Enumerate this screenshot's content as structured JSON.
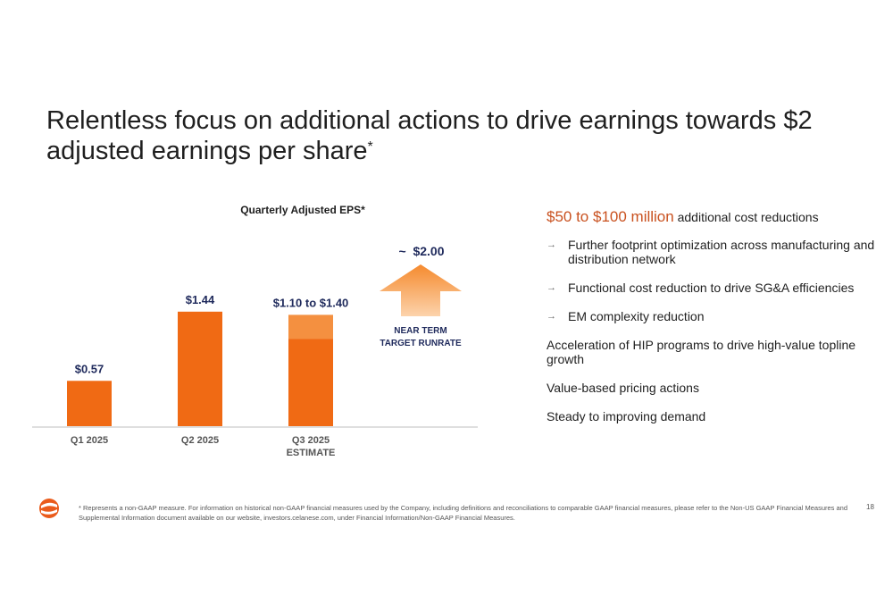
{
  "title": "Relentless focus on additional actions to drive earnings towards $2 adjusted earnings per share",
  "title_marker": "*",
  "chart_data": {
    "type": "bar",
    "title": "Quarterly Adjusted EPS*",
    "categories": [
      "Q1 2025",
      "Q2 2025",
      "Q3 2025"
    ],
    "category_sublabels": [
      "",
      "",
      "ESTIMATE"
    ],
    "values": [
      0.57,
      1.44,
      1.1
    ],
    "range": {
      "category": "Q3 2025",
      "low": 1.1,
      "high": 1.4
    },
    "data_labels": [
      "$0.57",
      "$1.44",
      "$1.10  to $1.40"
    ],
    "target": {
      "value": 2.0,
      "label": "~  $2.00",
      "caption_line1": "NEAR TERM",
      "caption_line2": "TARGET RUNRATE"
    },
    "colors": {
      "bar": "#f06a14",
      "range": "#f49040",
      "label": "#1f2a5c",
      "arrow": "#f58a2e",
      "arrow_light": "#fcd3ac"
    },
    "ylim": [
      0,
      2.2
    ],
    "grid": false
  },
  "right": {
    "headline_highlight": "$50 to $100 million",
    "headline_rest": "additional cost reductions",
    "bullets": [
      "Further footprint optimization across manufacturing and distribution network",
      "Functional cost reduction to drive SG&A efficiencies",
      "EM complexity reduction"
    ],
    "bullet_icon": "arrow-right-icon",
    "paragraphs": [
      "Acceleration of HIP programs to drive high-value topline growth",
      "Value-based pricing actions",
      "Steady to improving demand"
    ]
  },
  "footnote": "* Represents a non-GAAP measure. For information on historical non-GAAP financial measures used by the Company, including definitions and reconciliations to comparable GAAP financial measures, please refer to the Non-US GAAP Financial Measures and Supplemental Information document available on our website, investors.celanese.com, under Financial Information/Non-GAAP Financial Measures.",
  "page_number": "18",
  "logo_icon": "celanese-logo-icon",
  "accent_color": "#c9511f"
}
